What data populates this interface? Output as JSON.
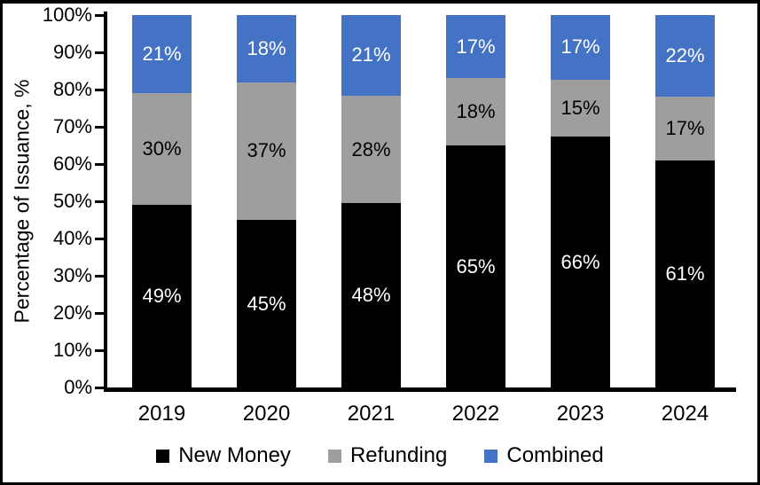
{
  "chart_data": {
    "type": "bar",
    "stacked": true,
    "orientation": "vertical",
    "title": "",
    "xlabel": "",
    "ylabel": "Percentage of Issuance, %",
    "categories": [
      "2019",
      "2020",
      "2021",
      "2022",
      "2023",
      "2024"
    ],
    "series": [
      {
        "name": "New Money",
        "color": "#000000",
        "label_color": "#ffffff",
        "values": [
          49,
          45,
          48,
          65,
          66,
          61
        ]
      },
      {
        "name": "Refunding",
        "color": "#9e9e9e",
        "label_color": "#000000",
        "values": [
          30,
          37,
          28,
          18,
          15,
          17
        ]
      },
      {
        "name": "Combined",
        "color": "#4472c4",
        "label_color": "#ffffff",
        "values": [
          21,
          18,
          21,
          17,
          17,
          22
        ]
      }
    ],
    "data_label_suffix": "%",
    "ylim": [
      0,
      100
    ],
    "y_ticks": [
      "0%",
      "10%",
      "20%",
      "30%",
      "40%",
      "50%",
      "60%",
      "70%",
      "80%",
      "90%",
      "100%"
    ],
    "grid": false,
    "legend_position": "bottom",
    "axis_color": "#000000",
    "background_color": "#ffffff",
    "frame_border_color": "#000000"
  }
}
